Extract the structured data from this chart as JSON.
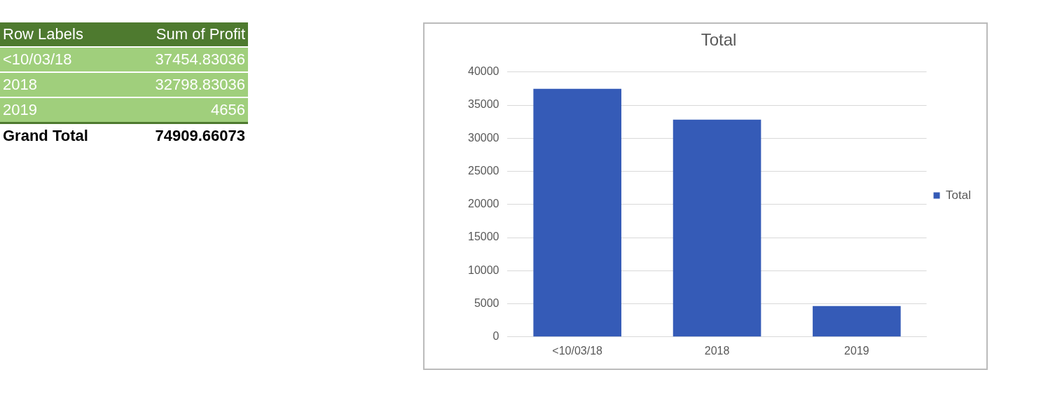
{
  "chart_data": {
    "type": "bar",
    "title": "Total",
    "categories": [
      "<10/03/18",
      "2018",
      "2019"
    ],
    "series": [
      {
        "name": "Total",
        "color": "#355bb7",
        "values": [
          37454.83036,
          32798.83036,
          4656
        ]
      }
    ],
    "ylim": [
      0,
      40000
    ],
    "yticks": [
      0,
      5000,
      10000,
      15000,
      20000,
      25000,
      30000,
      35000,
      40000
    ],
    "grid": "y",
    "legend": "right",
    "annotations": [
      "Row Labels",
      "Sum of Profit",
      "37454.83036",
      "32798.83036",
      "4656",
      "Grand Total",
      "74909.66073"
    ]
  }
}
